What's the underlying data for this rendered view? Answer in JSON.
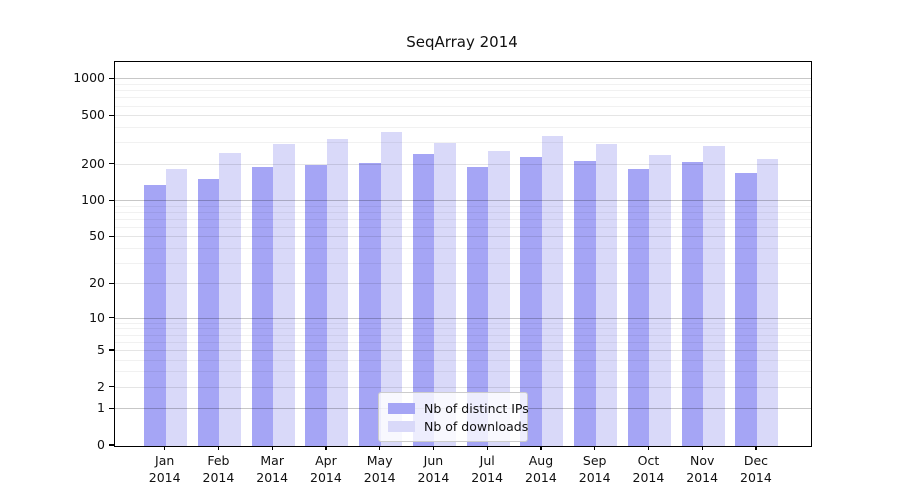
{
  "title": "SeqArray 2014",
  "legend": {
    "items": [
      {
        "label": "Nb of distinct IPs",
        "color": "#a5a5f5"
      },
      {
        "label": "Nb of downloads",
        "color": "#d9d9f9"
      }
    ]
  },
  "chart_data": {
    "type": "bar",
    "title": "SeqArray 2014",
    "x_months": [
      "Jan",
      "Feb",
      "Mar",
      "Apr",
      "May",
      "Jun",
      "Jul",
      "Aug",
      "Sep",
      "Oct",
      "Nov",
      "Dec"
    ],
    "x_year": "2014",
    "series": [
      {
        "name": "Nb of distinct IPs",
        "color": "#a5a5f5",
        "values": [
          137,
          151,
          190,
          197,
          205,
          245,
          193,
          230,
          216,
          184,
          212,
          170
        ]
      },
      {
        "name": "Nb of downloads",
        "color": "#d9d9f9",
        "values": [
          185,
          250,
          293,
          328,
          370,
          304,
          260,
          347,
          298,
          238,
          286,
          224
        ]
      }
    ],
    "yscale": "log1p",
    "ylim": [
      0,
      1390
    ],
    "yticks": [
      0,
      1,
      2,
      5,
      10,
      20,
      50,
      100,
      200,
      500,
      1000
    ],
    "yticks_decade": [
      1,
      10,
      100,
      1000
    ],
    "minor_gridlines": [
      3,
      4,
      6,
      7,
      8,
      9,
      30,
      40,
      60,
      70,
      80,
      90,
      300,
      400,
      600,
      700,
      800,
      900
    ],
    "grid": true,
    "legend_position": "inside lower-center"
  },
  "colors": {
    "grid_decade": "rgba(0,0,0,0.22)",
    "grid_major": "rgba(0,0,0,0.10)",
    "grid_minor": "rgba(0,0,0,0.055)",
    "spine": "#000000",
    "text": "#111111"
  }
}
